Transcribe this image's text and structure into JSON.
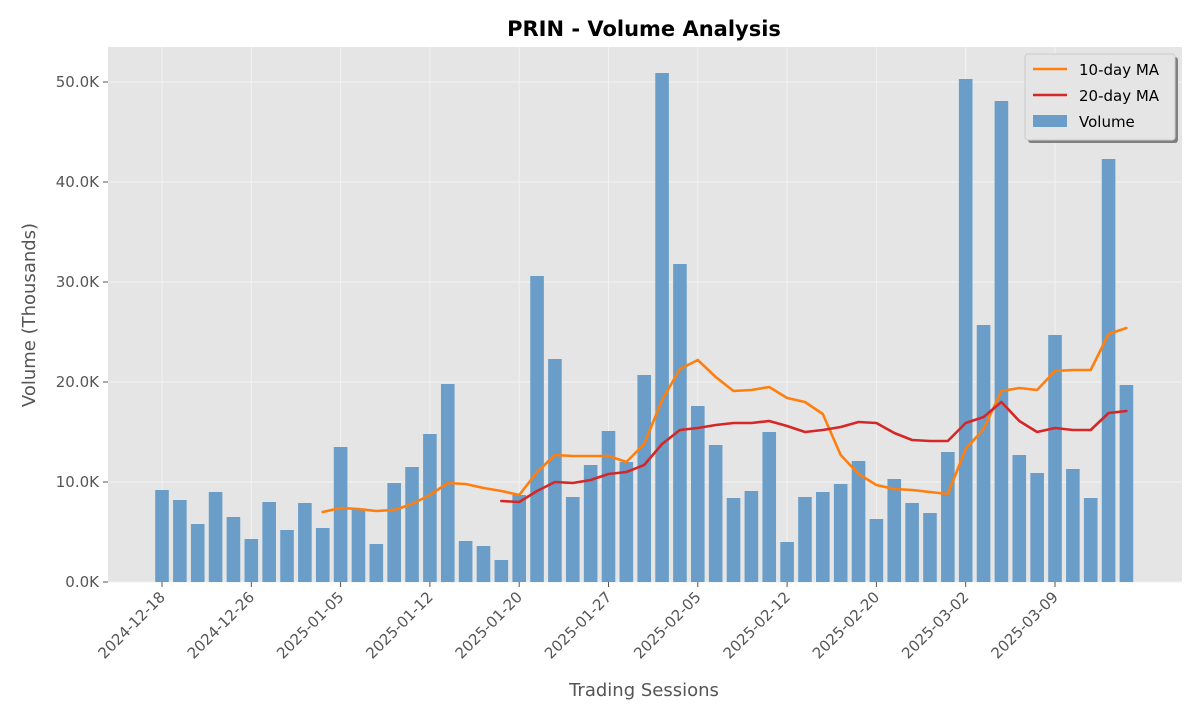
{
  "chart_data": {
    "type": "bar",
    "title": "PRIN - Volume Analysis",
    "xlabel": "Trading Sessions",
    "ylabel": "Volume (Thousands)",
    "ylim": [
      0,
      53.5
    ],
    "grid": true,
    "legend_position": "top-right",
    "y_ticks": [
      0,
      10,
      20,
      30,
      40,
      50
    ],
    "y_tick_labels": [
      "0.0K",
      "10.0K",
      "20.0K",
      "30.0K",
      "40.0K",
      "50.0K"
    ],
    "x_tick_labels": [
      "2024-12-18",
      "2024-12-26",
      "2025-01-05",
      "2025-01-12",
      "2025-01-20",
      "2025-01-27",
      "2025-02-05",
      "2025-02-12",
      "2025-02-20",
      "2025-03-02",
      "2025-03-09"
    ],
    "x_tick_index": [
      0,
      5,
      10,
      15,
      20,
      25,
      30,
      35,
      40,
      45,
      50
    ],
    "colors": {
      "volume": "#6a9ec9",
      "ma10": "#ff7f0e",
      "ma20": "#d62728",
      "plot_bg": "#e5e5e5",
      "grid": "#f2f2f2"
    },
    "series": [
      {
        "name": "Volume",
        "kind": "bar",
        "values": [
          9.2,
          8.2,
          5.8,
          9.0,
          6.5,
          4.3,
          8.0,
          5.2,
          7.9,
          5.4,
          13.5,
          7.3,
          3.8,
          9.9,
          11.5,
          14.8,
          19.8,
          4.1,
          3.6,
          2.2,
          8.7,
          30.6,
          22.3,
          8.5,
          11.7,
          15.1,
          12.0,
          20.7,
          50.9,
          31.8,
          17.6,
          13.7,
          8.4,
          9.1,
          15.0,
          4.0,
          8.5,
          9.0,
          9.8,
          12.1,
          6.3,
          10.3,
          7.9,
          6.9,
          13.0,
          50.3,
          25.7,
          48.1,
          12.7,
          10.9,
          24.7,
          11.3,
          8.4,
          42.3,
          19.7
        ]
      },
      {
        "name": "10-day MA",
        "kind": "line",
        "values": [
          null,
          null,
          null,
          null,
          null,
          null,
          null,
          null,
          null,
          7.0,
          7.4,
          7.3,
          7.1,
          7.2,
          7.8,
          8.7,
          9.9,
          9.8,
          9.4,
          9.1,
          8.7,
          11.0,
          12.7,
          12.6,
          12.6,
          12.6,
          12.0,
          13.8,
          18.2,
          21.3,
          22.2,
          20.5,
          19.1,
          19.2,
          19.5,
          18.4,
          18.0,
          16.8,
          12.7,
          10.8,
          9.7,
          9.3,
          9.2,
          9.0,
          8.8,
          13.3,
          15.3,
          19.1,
          19.4,
          19.2,
          21.1,
          21.2,
          21.2,
          24.8,
          25.4
        ]
      },
      {
        "name": "20-day MA",
        "kind": "line",
        "values": [
          null,
          null,
          null,
          null,
          null,
          null,
          null,
          null,
          null,
          null,
          null,
          null,
          null,
          null,
          null,
          null,
          null,
          null,
          null,
          8.1,
          8.0,
          9.1,
          10.0,
          9.9,
          10.2,
          10.8,
          11.0,
          11.7,
          13.8,
          15.2,
          15.4,
          15.7,
          15.9,
          15.9,
          16.1,
          15.6,
          15.0,
          15.2,
          15.5,
          16.0,
          15.9,
          14.9,
          14.2,
          14.1,
          14.1,
          15.9,
          16.5,
          18.0,
          16.1,
          15.0,
          15.4,
          15.2,
          15.2,
          16.9,
          17.1
        ]
      }
    ]
  }
}
